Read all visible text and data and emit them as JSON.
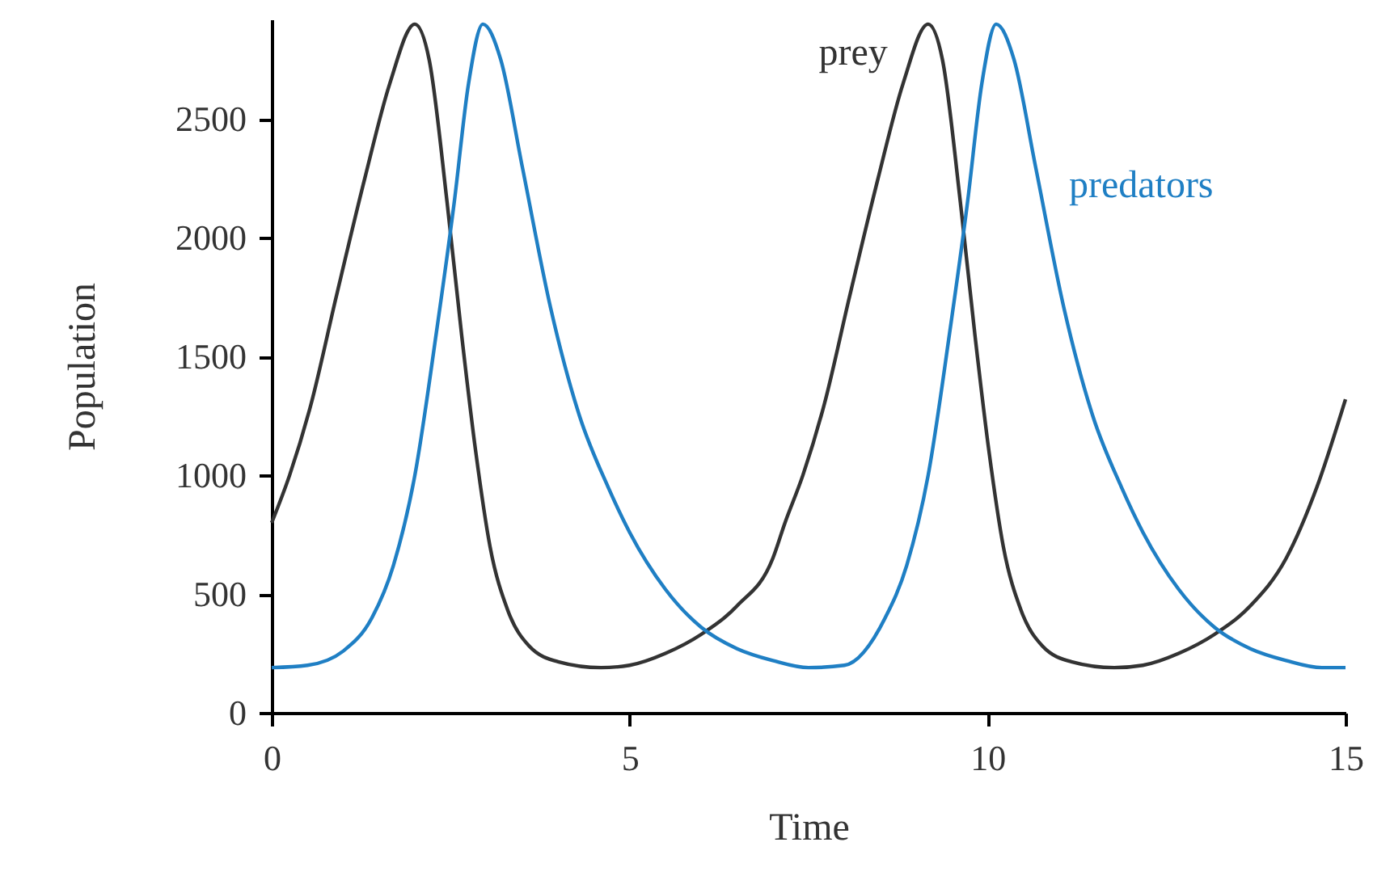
{
  "chart_data": {
    "type": "line",
    "xlabel": "Time",
    "ylabel": "Population",
    "xlim": [
      0,
      15
    ],
    "xticks": [
      0,
      5,
      10,
      15
    ],
    "ylim": [
      0,
      2920
    ],
    "yticks": [
      0,
      500,
      1000,
      1500,
      2000,
      2500
    ],
    "grid": false,
    "legend": false,
    "marker": "none",
    "line_style": "solid",
    "series": [
      {
        "name": "prey",
        "color": "#333333",
        "x": [
          0,
          0.25,
          0.55,
          0.9,
          1.3,
          1.65,
          2.0,
          2.2,
          2.45,
          2.65,
          2.85,
          3.05,
          3.3,
          3.6,
          4.0,
          4.6,
          5.0,
          5.5,
          6.0,
          6.5,
          7.0,
          7.17,
          7.42,
          7.72,
          8.07,
          8.47,
          8.82,
          9.17,
          9.37,
          9.62,
          9.82,
          10.02,
          10.22,
          10.47,
          10.77,
          11.17,
          11.77,
          12.17,
          12.67,
          13.17,
          13.67,
          14.17,
          14.6,
          15.0
        ],
        "values": [
          800,
          1000,
          1300,
          1750,
          2250,
          2650,
          2900,
          2750,
          2150,
          1600,
          1100,
          700,
          430,
          280,
          215,
          190,
          200,
          250,
          330,
          450,
          650,
          800,
          1000,
          1300,
          1750,
          2250,
          2650,
          2900,
          2750,
          2150,
          1600,
          1100,
          700,
          430,
          280,
          215,
          190,
          200,
          250,
          330,
          450,
          650,
          950,
          1320
        ]
      },
      {
        "name": "predators",
        "color": "#1f7fc4",
        "x": [
          0,
          0.5,
          1.0,
          1.4,
          1.7,
          2.0,
          2.3,
          2.55,
          2.75,
          2.95,
          3.2,
          3.5,
          3.9,
          4.3,
          4.7,
          5.0,
          5.5,
          6.0,
          6.5,
          7.0,
          7.5,
          8.0,
          8.57,
          8.87,
          9.17,
          9.47,
          9.72,
          9.92,
          10.12,
          10.37,
          10.67,
          11.07,
          11.47,
          11.87,
          12.17,
          12.67,
          13.17,
          13.67,
          14.17,
          14.67,
          15.0
        ],
        "values": [
          190,
          200,
          260,
          400,
          620,
          1000,
          1600,
          2150,
          2650,
          2900,
          2750,
          2300,
          1700,
          1250,
          950,
          760,
          520,
          360,
          270,
          220,
          190,
          200,
          400,
          620,
          1000,
          1600,
          2150,
          2650,
          2900,
          2750,
          2300,
          1700,
          1250,
          950,
          760,
          520,
          360,
          270,
          220,
          190,
          190
        ]
      }
    ]
  }
}
